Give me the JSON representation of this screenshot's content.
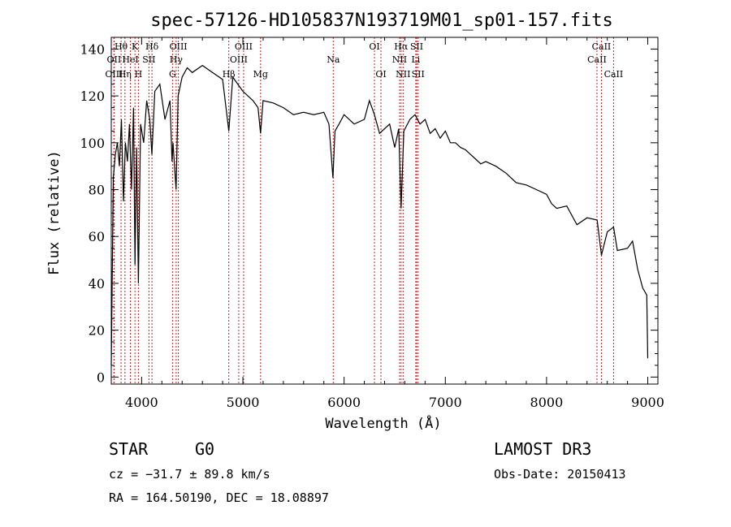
{
  "chart_data": {
    "type": "line",
    "title": "spec-57126-HD105837N193719M01_sp01-157.fits",
    "xlabel": "Wavelength (Å)",
    "ylabel": "Flux (relative)",
    "xlim": [
      3700,
      9100
    ],
    "ylim": [
      -3,
      145
    ],
    "x_ticks": [
      4000,
      5000,
      6000,
      7000,
      8000,
      9000
    ],
    "y_ticks": [
      0,
      20,
      40,
      60,
      80,
      100,
      120,
      140
    ],
    "grid": false,
    "series": [
      {
        "name": "spectrum",
        "x": [
          3700,
          3720,
          3740,
          3760,
          3780,
          3800,
          3820,
          3840,
          3860,
          3880,
          3900,
          3920,
          3934,
          3950,
          3968,
          3990,
          4020,
          4050,
          4080,
          4101,
          4130,
          4180,
          4230,
          4280,
          4300,
          4310,
          4340,
          4360,
          4400,
          4450,
          4500,
          4600,
          4700,
          4800,
          4861,
          4900,
          5000,
          5100,
          5150,
          5175,
          5200,
          5300,
          5400,
          5500,
          5600,
          5700,
          5800,
          5850,
          5890,
          5910,
          5950,
          6000,
          6100,
          6200,
          6250,
          6300,
          6350,
          6400,
          6450,
          6500,
          6540,
          6563,
          6590,
          6650,
          6700,
          6750,
          6800,
          6850,
          6900,
          6950,
          7000,
          7050,
          7100,
          7150,
          7200,
          7250,
          7300,
          7350,
          7400,
          7500,
          7600,
          7700,
          7800,
          7900,
          8000,
          8050,
          8100,
          8200,
          8300,
          8400,
          8500,
          8542,
          8600,
          8662,
          8700,
          8800,
          8850,
          8900,
          8950,
          8990,
          9000
        ],
        "values": [
          5,
          85,
          95,
          100,
          90,
          110,
          75,
          100,
          92,
          108,
          80,
          115,
          48,
          98,
          40,
          108,
          100,
          118,
          110,
          95,
          122,
          125,
          110,
          118,
          92,
          100,
          80,
          120,
          128,
          132,
          130,
          133,
          130,
          127,
          105,
          128,
          122,
          118,
          115,
          104,
          118,
          117,
          115,
          112,
          113,
          112,
          113,
          108,
          85,
          105,
          108,
          112,
          108,
          110,
          118,
          112,
          104,
          106,
          108,
          98,
          106,
          72,
          105,
          110,
          112,
          108,
          110,
          104,
          106,
          102,
          105,
          100,
          100,
          98,
          97,
          95,
          93,
          91,
          92,
          90,
          87,
          83,
          82,
          80,
          78,
          74,
          72,
          73,
          65,
          68,
          67,
          52,
          62,
          64,
          54,
          55,
          58,
          46,
          38,
          35,
          8
        ]
      }
    ],
    "spectral_lines": [
      {
        "label": "Hθ",
        "x": 3797,
        "row": 1
      },
      {
        "label": "OII",
        "x": 3727,
        "row": 2
      },
      {
        "label": "Hη",
        "x": 3835,
        "row": 3
      },
      {
        "label": "OIII",
        "x": 3727,
        "row": 3
      },
      {
        "label": "HeI",
        "x": 3889,
        "row": 2
      },
      {
        "label": "K",
        "x": 3934,
        "row": 1
      },
      {
        "label": "H",
        "x": 3968,
        "row": 3
      },
      {
        "label": "SII",
        "x": 4072,
        "row": 2
      },
      {
        "label": "Hδ",
        "x": 4102,
        "row": 1
      },
      {
        "label": "G",
        "x": 4305,
        "row": 3
      },
      {
        "label": "OIII",
        "x": 4363,
        "row": 1
      },
      {
        "label": "Hγ",
        "x": 4341,
        "row": 2
      },
      {
        "label": "Hβ",
        "x": 4861,
        "row": 3
      },
      {
        "label": "OIII",
        "x": 4959,
        "row": 2
      },
      {
        "label": "OIII",
        "x": 5007,
        "row": 1
      },
      {
        "label": "Mg",
        "x": 5175,
        "row": 3
      },
      {
        "label": "Na",
        "x": 5893,
        "row": 2
      },
      {
        "label": "OI",
        "x": 6300,
        "row": 1
      },
      {
        "label": "OI",
        "x": 6364,
        "row": 3
      },
      {
        "label": "NII",
        "x": 6548,
        "row": 2
      },
      {
        "label": "Hα",
        "x": 6563,
        "row": 1
      },
      {
        "label": "NII",
        "x": 6583,
        "row": 3
      },
      {
        "label": "SII",
        "x": 6717,
        "row": 1
      },
      {
        "label": "Li",
        "x": 6708,
        "row": 2
      },
      {
        "label": "SII",
        "x": 6731,
        "row": 3
      },
      {
        "label": "CaII",
        "x": 8498,
        "row": 2
      },
      {
        "label": "CaII",
        "x": 8542,
        "row": 1
      },
      {
        "label": "CaII",
        "x": 8662,
        "row": 3
      }
    ]
  },
  "footer": {
    "class_label": "STAR",
    "subclass": "G0",
    "survey": "LAMOST DR3",
    "cz": "cz = −31.7 ± 89.8 km/s",
    "obs_date": "Obs-Date: 20150413",
    "coords": "RA = 164.50190, DEC =  18.08897"
  }
}
